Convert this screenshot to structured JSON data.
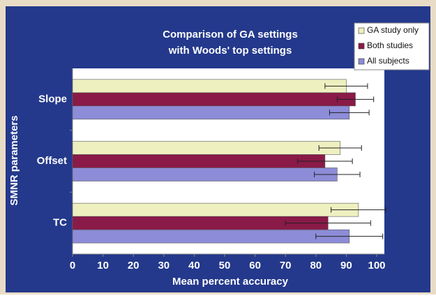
{
  "chart_data": {
    "type": "hbar",
    "title": [
      "Comparison of GA settings",
      "with Woods' top settings"
    ],
    "x_label": "Mean percent accuracy",
    "y_label": "SMNR parameters",
    "categories": [
      "Slope",
      "Offset",
      "TC"
    ],
    "series": [
      {
        "name": "GA study only",
        "color": "#eef0c0",
        "values": [
          90,
          88,
          94
        ],
        "errors": [
          7,
          7,
          9
        ]
      },
      {
        "name": "Both studies",
        "color": "#8a1a48",
        "values": [
          93,
          83,
          84
        ],
        "errors": [
          6,
          9,
          14
        ]
      },
      {
        "name": "All subjects",
        "color": "#8c8cd8",
        "values": [
          91,
          87,
          91
        ],
        "errors": [
          6.5,
          7.5,
          11
        ]
      }
    ],
    "xlim": [
      0,
      100
    ],
    "xticks": [
      0,
      10,
      20,
      30,
      40,
      50,
      60,
      70,
      80,
      90,
      100
    ],
    "legend": "top-right"
  }
}
